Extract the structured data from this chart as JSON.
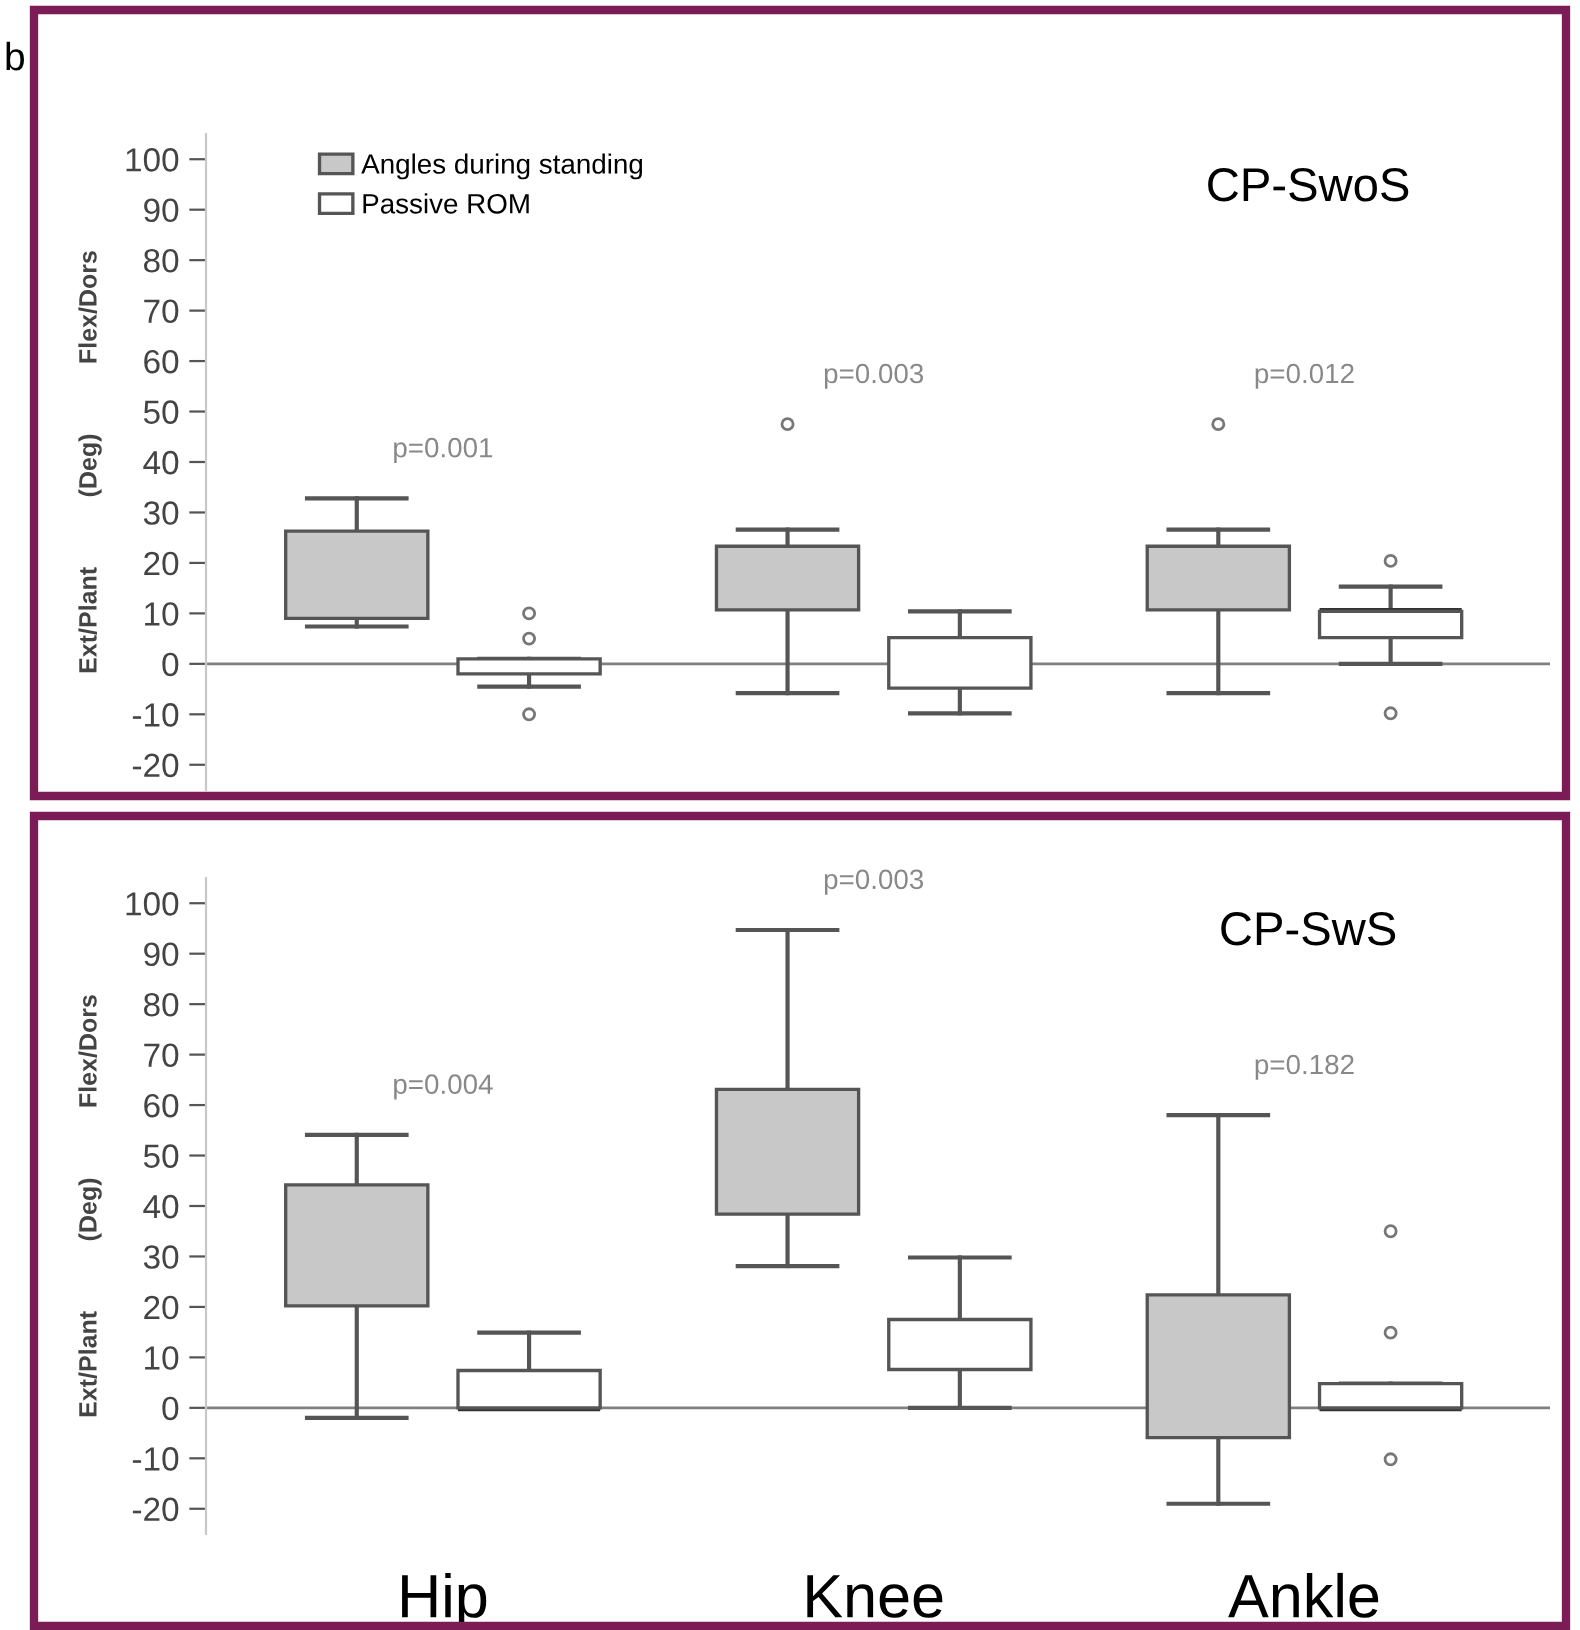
{
  "chart_data": [
    {
      "type": "box",
      "title": "CP-SwoS",
      "ylabel": "Ext/Plant          (Deg)          Flex/Dors",
      "categories": [
        null,
        null,
        null
      ],
      "tick_labels": "y",
      "ylim": [
        -25,
        105
      ],
      "yticks": [
        -20,
        -10,
        0,
        10,
        20,
        30,
        40,
        50,
        60,
        70,
        80,
        90,
        100
      ],
      "legend": "top left",
      "grid": false,
      "series": [
        {
          "name": "Angles during standing",
          "color": "#c8c8c8",
          "boxes": [
            {
              "low": 7.4,
              "q1": 9,
              "median": 18.7,
              "q3": 26.3,
              "high": 32.8
            },
            {
              "low": -5.8,
              "q1": 10.7,
              "median": 16.9,
              "q3": 23.3,
              "high": 26.6,
              "outliers": [
                47.5
              ]
            },
            {
              "low": -5.8,
              "q1": 10.7,
              "median": 16.9,
              "q3": 23.3,
              "high": 26.6,
              "outliers": [
                47.5
              ]
            }
          ]
        },
        {
          "name": "Passive ROM",
          "color": "#ffffff",
          "boxes": [
            {
              "low": -4.5,
              "q1": -2,
              "median": 0,
              "q3": 1,
              "high": 1,
              "outliers": [
                10,
                5,
                -10
              ]
            },
            {
              "low": -9.8,
              "q1": -4.8,
              "median": 0,
              "q3": 5.2,
              "high": 10.4
            },
            {
              "low": 0,
              "q1": 5.2,
              "median": 10.4,
              "q3": 10.4,
              "high": 15.3,
              "outliers": [
                20.4,
                -9.8
              ]
            }
          ]
        }
      ],
      "ref_lines": [
        {
          "axis": "y",
          "value": 0,
          "color": "#808080"
        }
      ],
      "annotations": [
        "b",
        "p=0.001",
        "p=0.003",
        "p=0.012"
      ]
    },
    {
      "type": "box",
      "title": "CP-SwS",
      "ylabel": "Ext/Plant          (Deg)          Flex/Dors",
      "categories": [
        "Hip",
        "Knee",
        "Ankle"
      ],
      "ylim": [
        -25,
        105
      ],
      "yticks": [
        -20,
        -10,
        0,
        10,
        20,
        30,
        40,
        50,
        60,
        70,
        80,
        90,
        100
      ],
      "grid": false,
      "series": [
        {
          "color": "#c8c8c8",
          "boxes": [
            {
              "low": -2,
              "q1": 20.2,
              "median": 30.7,
              "q3": 44.2,
              "high": 54.1
            },
            {
              "low": 28.1,
              "q1": 38.4,
              "median": 45,
              "q3": 63.1,
              "high": 94.7
            },
            {
              "low": -19,
              "q1": -5.9,
              "median": 8.6,
              "q3": 22.4,
              "high": 58
            }
          ]
        },
        {
          "color": "#ffffff",
          "boxes": [
            {
              "low": 0,
              "q1": 0,
              "median": 0,
              "q3": 7.4,
              "high": 14.9
            },
            {
              "low": 0,
              "q1": 7.6,
              "median": 10.3,
              "q3": 17.5,
              "high": 29.8
            },
            {
              "low": 0,
              "q1": 0,
              "median": 0,
              "q3": 4.8,
              "high": 4.8,
              "outliers": [
                35,
                14.9,
                -10.2
              ]
            }
          ]
        }
      ],
      "ref_lines": [
        {
          "axis": "y",
          "value": 0,
          "color": "#808080"
        }
      ],
      "annotations": [
        "p=0.004",
        "p=0.003",
        "p=0.182"
      ]
    }
  ]
}
